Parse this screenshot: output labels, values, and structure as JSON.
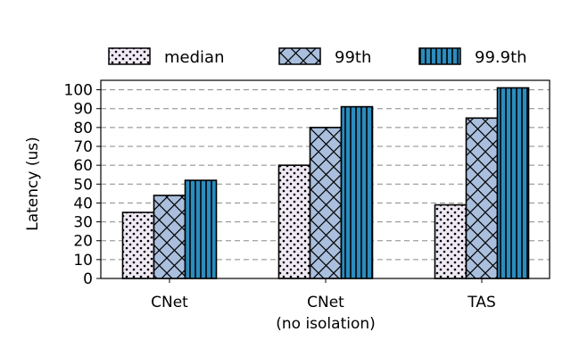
{
  "chart_data": {
    "type": "bar",
    "title": "",
    "xlabel": "",
    "ylabel": "Latency (us)",
    "categories": [
      [
        "CNet"
      ],
      [
        "CNet",
        "(no isolation)"
      ],
      [
        "TAS"
      ]
    ],
    "series": [
      {
        "name": "median",
        "values": [
          35,
          60,
          39
        ],
        "color": "#efe9f4",
        "pattern": "dots"
      },
      {
        "name": "99th",
        "values": [
          44,
          80,
          85
        ],
        "color": "#a9bfdd",
        "pattern": "crosshatch"
      },
      {
        "name": "99.9th",
        "values": [
          52,
          91,
          101
        ],
        "color": "#2b8cbe",
        "pattern": "vertical"
      }
    ],
    "ylim": [
      0,
      105
    ],
    "yticks": [
      0,
      10,
      20,
      30,
      40,
      50,
      60,
      70,
      80,
      90,
      100
    ],
    "grid": "y-dashed",
    "legend": "top"
  }
}
